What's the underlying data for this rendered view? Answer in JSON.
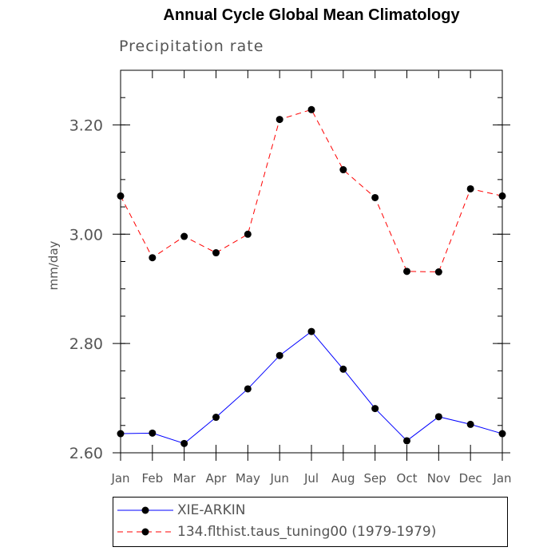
{
  "chart_data": {
    "type": "line",
    "title": "Annual Cycle Global Mean Climatology",
    "subtitle": "Precipitation rate",
    "xlabel": "",
    "ylabel": "mm/day",
    "categories": [
      "Jan",
      "Feb",
      "Mar",
      "Apr",
      "May",
      "Jun",
      "Jul",
      "Aug",
      "Sep",
      "Oct",
      "Nov",
      "Dec",
      "Jan"
    ],
    "ylim": [
      2.6,
      3.3
    ],
    "yticks": [
      2.6,
      2.8,
      3.0,
      3.2
    ],
    "ytick_labels": [
      "2.60",
      "2.80",
      "3.00",
      "3.20"
    ],
    "yminor_step": 0.05,
    "grid": false,
    "legend_position": "bottom",
    "series": [
      {
        "name": "XIE-ARKIN",
        "color": "#0000ff",
        "dash": "solid",
        "marker": "filled-circle",
        "values": [
          2.635,
          2.636,
          2.617,
          2.665,
          2.717,
          2.778,
          2.822,
          2.753,
          2.681,
          2.622,
          2.666,
          2.652,
          2.635
        ]
      },
      {
        "name": "134.flthist.taus_tuning00 (1979-1979)",
        "color": "#ff0000",
        "dash": "dashed",
        "marker": "filled-circle",
        "values": [
          3.07,
          2.957,
          2.996,
          2.966,
          3.0,
          3.21,
          3.228,
          3.118,
          3.067,
          2.932,
          2.931,
          3.083,
          3.07
        ]
      }
    ]
  }
}
